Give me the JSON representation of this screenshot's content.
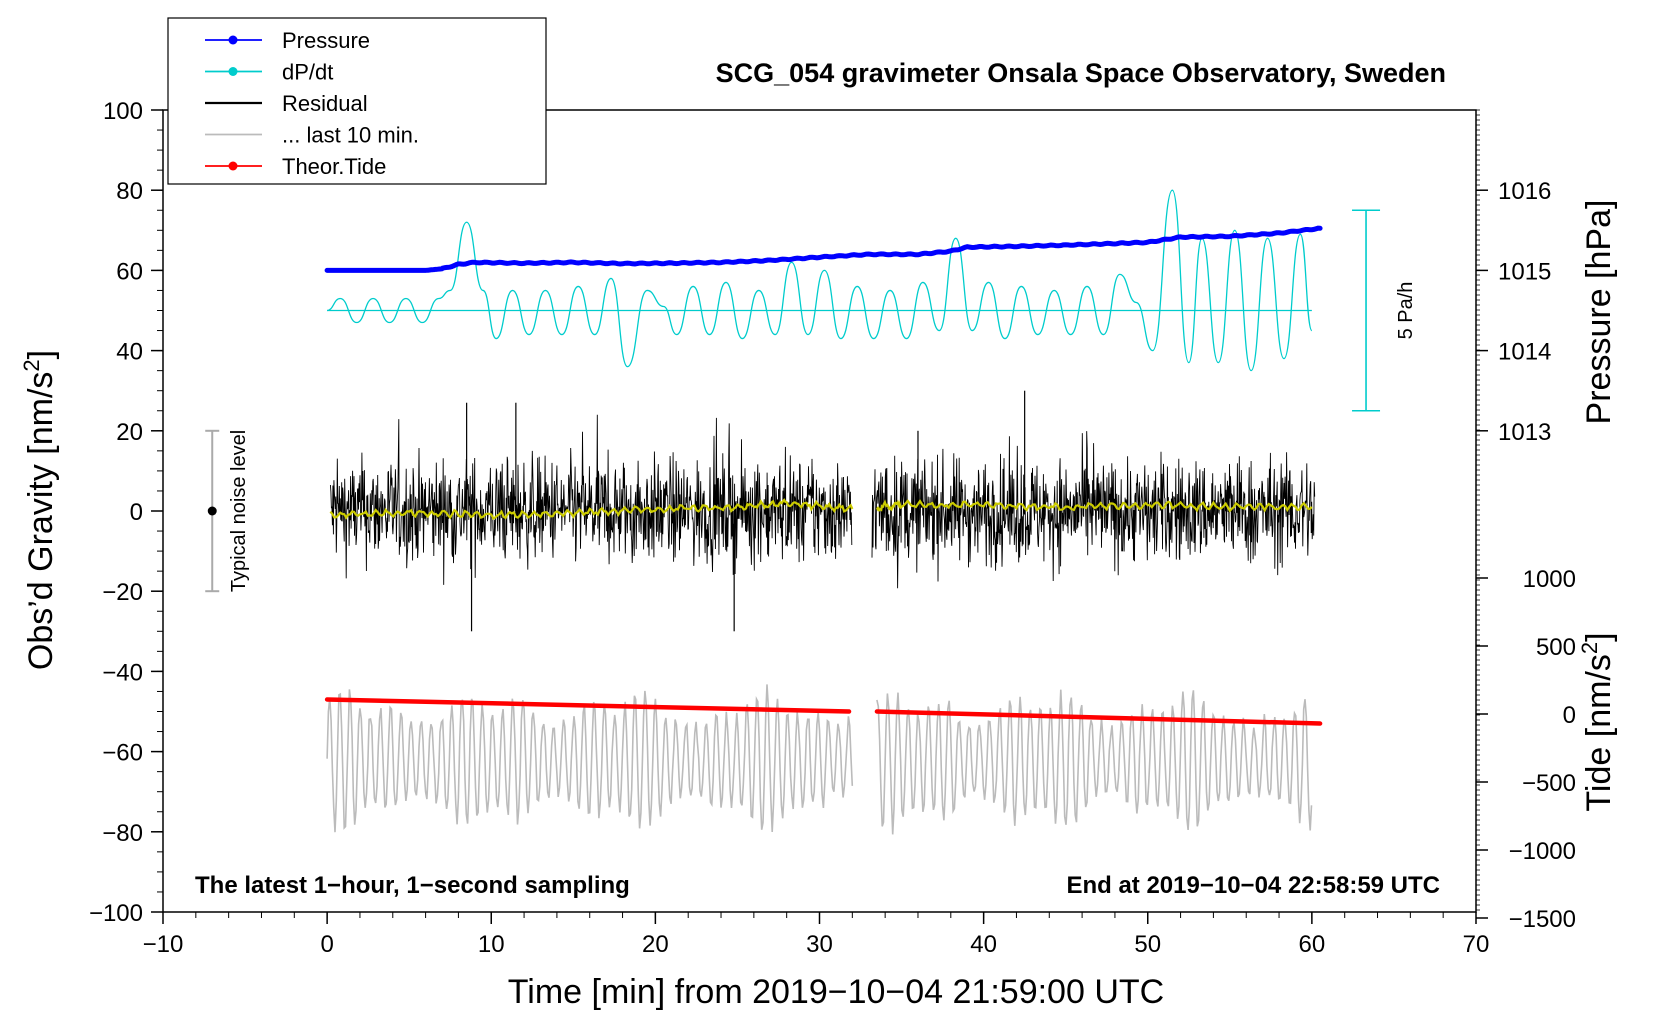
{
  "chart_data": {
    "type": "line",
    "title": "SCG_054 gravimeter Onsala Space Observatory, Sweden",
    "xlabel": "Time [min] from 2019−10−04 21:59:00 UTC",
    "ylabel": "Obs’d Gravity [nm/s²]",
    "ylabel_parts": {
      "main": "Obs’d Gravity [nm/s",
      "sup": "2",
      "tail": "]"
    },
    "xlim": [
      -10,
      70
    ],
    "ylim": [
      -100,
      100
    ],
    "x_ticks": [
      -10,
      0,
      10,
      20,
      30,
      40,
      50,
      60,
      70
    ],
    "x_tick_labels": [
      "−10",
      "0",
      "10",
      "20",
      "30",
      "40",
      "50",
      "60",
      "70"
    ],
    "y_ticks": [
      -100,
      -80,
      -60,
      -40,
      -20,
      0,
      20,
      40,
      60,
      80,
      100
    ],
    "y_tick_labels": [
      "−100",
      "−80",
      "−60",
      "−40",
      "−20",
      "0",
      "20",
      "40",
      "60",
      "80",
      "100"
    ],
    "pressure_axis": {
      "label": "Pressure [hPa]",
      "ticks": [
        1013,
        1014,
        1015,
        1016
      ],
      "tick_labels": [
        "1013",
        "1014",
        "1015",
        "1016"
      ],
      "gravity_at_1013": 20,
      "gravity_per_hPa": 20
    },
    "tide_axis": {
      "label_parts": {
        "main": "Tide [nm/s",
        "sup": "2",
        "tail": "]"
      },
      "ticks": [
        -1500,
        -1000,
        -500,
        0,
        500,
        1000
      ],
      "tick_labels": [
        "−1500",
        "−1000",
        "−500",
        "0",
        "500",
        "1000"
      ]
    },
    "legend": [
      {
        "label": "Pressure",
        "color": "#0000ff",
        "marker": true
      },
      {
        "label": "dP/dt",
        "color": "#00cccc",
        "marker": true
      },
      {
        "label": "Residual",
        "color": "#000000",
        "marker": false
      },
      {
        "label": "... last 10 min.",
        "color": "#bbbbbb",
        "marker": false
      },
      {
        "label": "Theor.Tide",
        "color": "#ff0000",
        "marker": true
      }
    ],
    "annotations": {
      "noise_label": "Typical noise level",
      "noise_range": [
        -20,
        20
      ],
      "noise_x": -7,
      "dpdt_label": "5 Pa/h",
      "dpdt_bar_x": 63.3,
      "dpdt_bar_range": [
        25,
        75
      ],
      "bottom_left": "The latest 1−hour, 1−second sampling",
      "bottom_right": "End at 2019−10−04 22:58:59 UTC"
    },
    "series": [
      {
        "name": "Pressure",
        "color": "#0000ff",
        "x": [
          0,
          6,
          7,
          8,
          9,
          12,
          15,
          18,
          21,
          24,
          27,
          30,
          33,
          36,
          38,
          39,
          42,
          45,
          48,
          50,
          52,
          55,
          58,
          60.5
        ],
        "y": [
          60,
          60,
          60.4,
          61.5,
          62,
          61.8,
          62,
          61.7,
          61.8,
          62,
          62.5,
          63.3,
          64,
          64,
          64.8,
          65.8,
          66,
          66.3,
          66.7,
          67,
          68.3,
          68.5,
          69.3,
          70.5
        ]
      },
      {
        "name": "dP/dt",
        "color": "#00cccc",
        "baseline": 50,
        "x": [
          0,
          0.8,
          1.8,
          2.8,
          3.8,
          4.8,
          5.8,
          6.8,
          7.5,
          8.5,
          9.5,
          10.3,
          11.3,
          12.3,
          13.3,
          14.3,
          15.3,
          16.3,
          17.3,
          18.3,
          19.5,
          20.5,
          21.3,
          22.3,
          23.3,
          24.3,
          25.3,
          26.3,
          27.3,
          28.3,
          29.3,
          30.3,
          31.3,
          32.3,
          33.3,
          34.3,
          35.3,
          36.3,
          37.3,
          38.3,
          39.3,
          40.3,
          41.3,
          42.3,
          43.3,
          44.3,
          45.3,
          46.3,
          47.3,
          48.3,
          49.3,
          50.3,
          51.5,
          52.5,
          53.3,
          54.3,
          55.3,
          56.3,
          57.3,
          58.3,
          59.3,
          60
        ],
        "y": [
          50,
          53,
          47,
          53,
          47,
          53,
          47,
          53,
          55,
          72,
          55,
          43,
          55,
          44,
          55,
          44,
          56,
          44,
          58,
          36,
          55,
          51,
          44,
          56,
          44,
          57,
          43,
          55,
          44,
          62,
          44,
          60,
          43,
          56,
          43,
          55,
          43,
          57,
          45,
          68,
          45,
          57,
          43,
          56,
          44,
          55,
          44,
          56,
          44,
          59,
          52,
          40,
          80,
          37,
          68,
          37,
          70,
          35,
          68,
          38,
          69,
          45
        ]
      },
      {
        "name": "Residual",
        "color": "#000000",
        "segments": [
          [
            0.2,
            32
          ],
          [
            33.2,
            60.2
          ]
        ],
        "amplitude": 22,
        "extremes": [
          [
            8.5,
            27
          ],
          [
            8.8,
            -30
          ],
          [
            11.5,
            27
          ],
          [
            24.8,
            -30
          ],
          [
            42.5,
            30
          ],
          [
            36,
            20
          ]
        ]
      },
      {
        "name": "Residual smoothed",
        "color": "#cccc00",
        "x": [
          0.2,
          5,
          10,
          15,
          20,
          25,
          28,
          32,
          33.5,
          35,
          40,
          45,
          50,
          55,
          60
        ],
        "y": [
          -1,
          -0.5,
          -1,
          -0.5,
          0.5,
          1,
          2,
          0.5,
          1,
          1.5,
          1.5,
          1,
          1.5,
          1,
          1
        ]
      },
      {
        "name": "... last 10 min.",
        "color": "#bbbbbb",
        "segments": [
          [
            0,
            32
          ],
          [
            33.5,
            60
          ]
        ],
        "center": -62,
        "amplitude": 18
      },
      {
        "name": "Theor.Tide",
        "color": "#ff0000",
        "segments": [
          [
            0,
            31.8
          ],
          [
            33.5,
            60.5
          ]
        ],
        "x": [
          0,
          31.8,
          33.5,
          60.5
        ],
        "y": [
          -47,
          -50,
          -50,
          -53
        ]
      }
    ]
  }
}
